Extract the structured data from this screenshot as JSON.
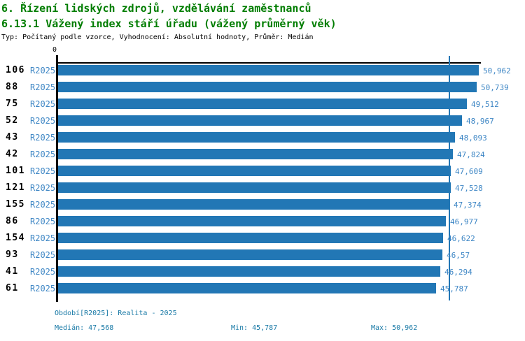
{
  "header": {
    "title_line1": "6. Řízení lidských zdrojů, vzdělávání zaměstnanců",
    "title_line2": "6.13.1 Vážený index stáří úřadu (vážený průměrný věk)",
    "subtitle": "Typ: Počítaný podle vzorce, Vyhodnocení: Absolutní hodnoty, Průměr: Medián"
  },
  "colors": {
    "title_green": "#007d00",
    "bar_blue": "#2277b5",
    "label_blue": "#3f87c5",
    "footer_teal": "#1879a6",
    "axis_black": "#000000"
  },
  "chart_data": {
    "type": "bar",
    "orientation": "horizontal",
    "title": "6.13.1 Vážený index stáří úřadu (vážený průměrný věk)",
    "series_name": "R2025",
    "categories": [
      "106",
      "88",
      "75",
      "52",
      "43",
      "42",
      "101",
      "121",
      "155",
      "86",
      "154",
      "93",
      "41",
      "61"
    ],
    "values": [
      50.962,
      50.739,
      49.512,
      48.967,
      48.093,
      47.824,
      47.609,
      47.528,
      47.374,
      46.977,
      46.622,
      46.57,
      46.294,
      45.787
    ],
    "value_labels": [
      "50,962",
      "50,739",
      "49,512",
      "48,967",
      "48,093",
      "47,824",
      "47,609",
      "47,528",
      "47,374",
      "46,977",
      "46,622",
      "46,57",
      "46,294",
      "45,787"
    ],
    "xlim": [
      0,
      50.962
    ],
    "zero_tick_label": "0",
    "median_value": 47.568,
    "grid": false,
    "legend_position": "none"
  },
  "footer": {
    "period": "Období[R2025]: Realita - 2025",
    "median": "Medián: 47,568",
    "min": "Min: 45,787",
    "max": "Max: 50,962"
  }
}
